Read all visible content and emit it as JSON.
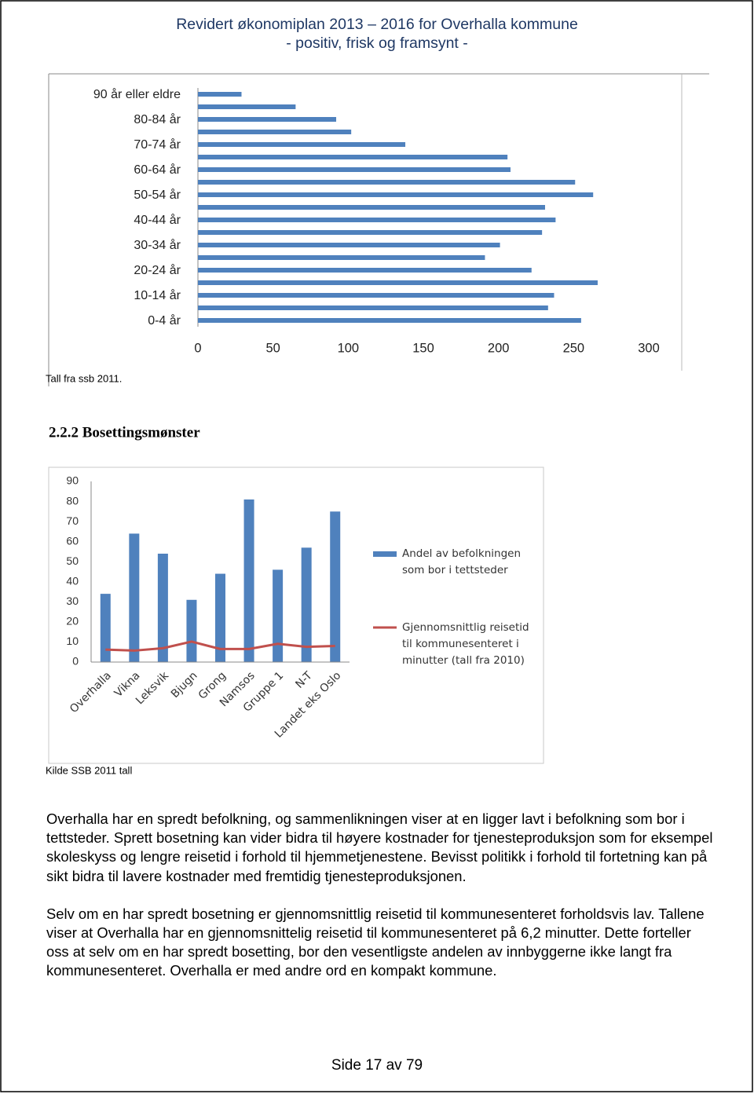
{
  "header": {
    "title": "Revidert økonomiplan 2013 – 2016 for Overhalla kommune",
    "subtitle": "- positiv, frisk og framsynt -"
  },
  "chart_data": [
    {
      "type": "bar",
      "orientation": "horizontal",
      "categories": [
        "0-4 år",
        null,
        "10-14 år",
        null,
        "20-24 år",
        null,
        "30-34 år",
        null,
        "40-44 år",
        null,
        "50-54 år",
        null,
        "60-64 år",
        null,
        "70-74 år",
        null,
        "80-84 år",
        null,
        "90 år eller eldre"
      ],
      "values": [
        255,
        233,
        237,
        266,
        222,
        191,
        201,
        229,
        238,
        231,
        263,
        251,
        208,
        206,
        138,
        102,
        92,
        65,
        29
      ],
      "color": "#4f81bd",
      "xlim": [
        0,
        300
      ],
      "xticks": [
        0,
        50,
        100,
        150,
        200,
        250,
        300
      ],
      "grid": false
    },
    {
      "type": "combo",
      "categories": [
        "Overhalla",
        "Vikna",
        "Leksvik",
        "Bjugn",
        "Grong",
        "Namsos",
        "Gruppe 1",
        "N-T",
        "Landet eks Oslo"
      ],
      "series": [
        {
          "name": "Andel av befolkningen som bor i tettsteder",
          "type": "bar",
          "color": "#4f81bd",
          "values": [
            34,
            64,
            54,
            31,
            44,
            81,
            46,
            57,
            75
          ]
        },
        {
          "name": "Gjennomsnittlig reisetid til kommunesenteret i minutter (tall fra 2010)",
          "type": "line",
          "color": "#c0504d",
          "values": [
            6.2,
            5.7,
            6.9,
            10.2,
            6.5,
            6.5,
            9.1,
            7.6,
            8.0
          ]
        }
      ],
      "ylim": [
        0,
        90
      ],
      "yticks": [
        0,
        10,
        20,
        30,
        40,
        50,
        60,
        70,
        80,
        90
      ],
      "grid": false,
      "legend": "right"
    }
  ],
  "chart_notes": [
    "Tall fra ssb 2011.",
    "Kilde SSB 2011 tall"
  ],
  "section_heading": "2.2.2 Bosettingsmønster",
  "paragraphs": [
    "Overhalla har en spredt befolkning, og sammenlikningen viser at en ligger lavt i befolkning som bor i tettsteder. Sprett bosetning kan vider bidra til høyere kostnader for tjenesteproduksjon som for eksempel skoleskyss og lengre reisetid i forhold til hjemmetjenestene. Bevisst politikk i forhold til fortetning kan på sikt bidra til lavere kostnader med fremtidig tjenesteproduksjonen.",
    "Selv om en har spredt bosetning er gjennomsnittlig reisetid til kommunesenteret forholdsvis lav. Tallene viser at Overhalla har en gjennomsnittelig reisetid til kommunesenteret på 6,2 minutter. Dette forteller oss at selv om en har spredt bosetting, bor den vesentligste andelen av innbyggerne ikke langt fra kommunesenteret. Overhalla er med andre ord en kompakt kommune."
  ],
  "footer": "Side 17 av 79"
}
